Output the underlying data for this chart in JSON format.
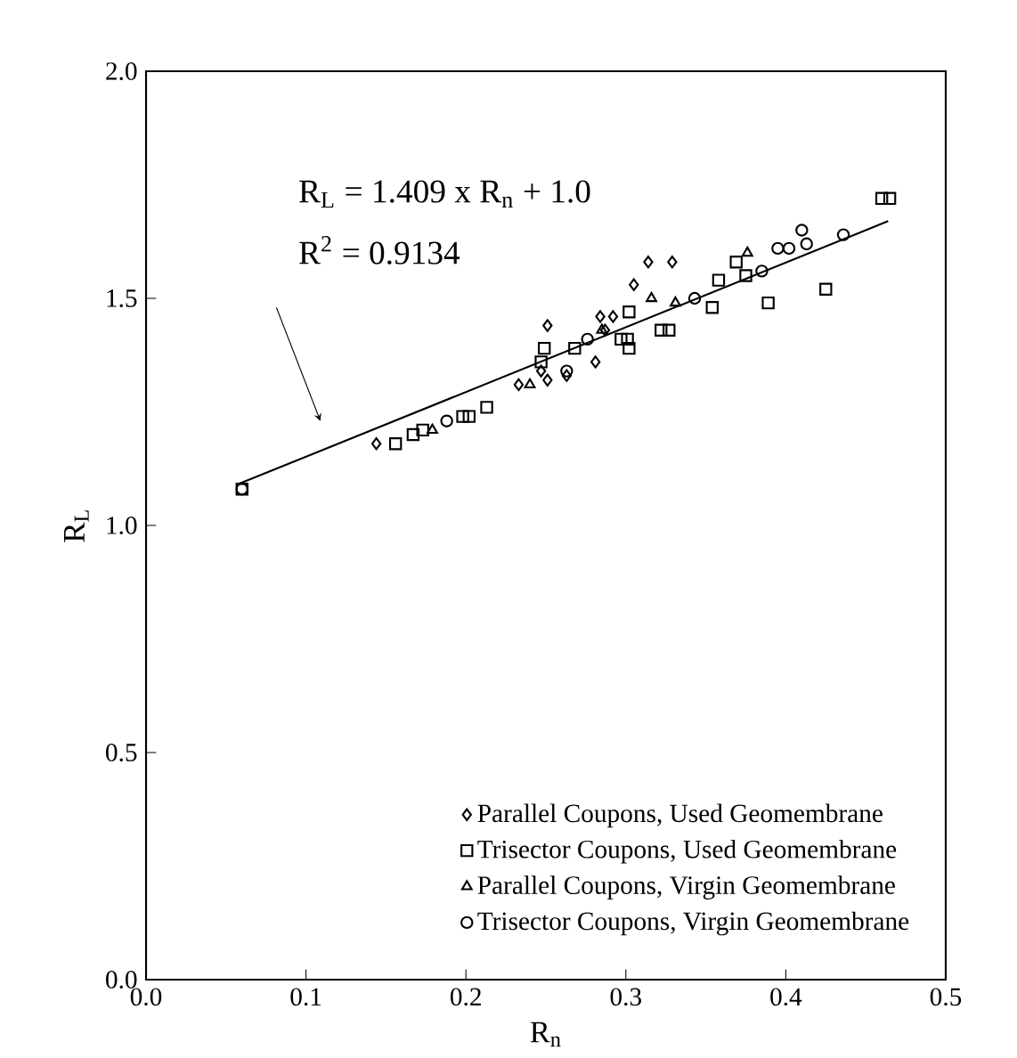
{
  "chart_data": {
    "type": "scatter",
    "xlabel": "R$_{n}$",
    "ylabel": "R$_{L}$",
    "xlim": [
      0,
      0.5
    ],
    "ylim": [
      0,
      2
    ],
    "xticks": [
      {
        "value": 0,
        "label": "0.0"
      },
      {
        "value": 0.1,
        "label": "0.1"
      },
      {
        "value": 0.2,
        "label": "0.2"
      },
      {
        "value": 0.3,
        "label": "0.3"
      },
      {
        "value": 0.4,
        "label": "0.4"
      },
      {
        "value": 0.5,
        "label": "0.5"
      }
    ],
    "yticks": [
      {
        "value": 0,
        "label": "0.0"
      },
      {
        "value": 0.5,
        "label": "0.5"
      },
      {
        "value": 1,
        "label": "1.0"
      },
      {
        "value": 1.5,
        "label": "1.5"
      },
      {
        "value": 2,
        "label": "2.0"
      }
    ],
    "grid": false,
    "legend": "bottom right",
    "annotations": [
      "R$_{L}$ = 1.409 x R$_{n}$ + 1.0",
      "R$^{2}$ = 0.9134"
    ],
    "series": [
      {
        "name": "Parallel Coupons, Used Geomembrane",
        "color": "#000000",
        "marker": "diamond",
        "x": [
          0.144,
          0.314,
          0.329,
          0.305,
          0.251,
          0.284,
          0.292,
          0.281,
          0.251,
          0.233,
          0.263,
          0.247,
          0.287
        ],
        "values": [
          1.18,
          1.58,
          1.58,
          1.53,
          1.44,
          1.46,
          1.46,
          1.36,
          1.32,
          1.31,
          1.33,
          1.34,
          1.43
        ]
      },
      {
        "name": "Trisector Coupons, Used Geomembrane",
        "color": "#000000",
        "marker": "square",
        "x": [
          0.06,
          0.156,
          0.167,
          0.173,
          0.198,
          0.202,
          0.213,
          0.249,
          0.247,
          0.268,
          0.302,
          0.301,
          0.302,
          0.297,
          0.322,
          0.327,
          0.358,
          0.354,
          0.369,
          0.375,
          0.389,
          0.425,
          0.46,
          0.465
        ],
        "values": [
          1.08,
          1.18,
          1.2,
          1.21,
          1.24,
          1.24,
          1.26,
          1.39,
          1.36,
          1.39,
          1.47,
          1.41,
          1.39,
          1.41,
          1.43,
          1.43,
          1.54,
          1.48,
          1.58,
          1.55,
          1.49,
          1.52,
          1.72,
          1.72
        ]
      },
      {
        "name": "Parallel Coupons, Virgin Geomembrane",
        "color": "#000000",
        "marker": "triangle",
        "x": [
          0.179,
          0.24,
          0.316,
          0.331,
          0.376,
          0.285
        ],
        "values": [
          1.21,
          1.31,
          1.5,
          1.49,
          1.6,
          1.43
        ]
      },
      {
        "name": "Trisector Coupons, Virgin Geomembrane",
        "color": "#000000",
        "marker": "circle",
        "x": [
          0.06,
          0.188,
          0.343,
          0.385,
          0.395,
          0.402,
          0.41,
          0.413,
          0.436,
          0.276,
          0.263
        ],
        "values": [
          1.08,
          1.23,
          1.5,
          1.56,
          1.61,
          1.61,
          1.65,
          1.62,
          1.64,
          1.41,
          1.34
        ]
      },
      {
        "type": "line",
        "color": "#000000",
        "marker": "none",
        "x": [
          0.057,
          0.464
        ],
        "values": [
          1.09,
          1.67
        ]
      }
    ]
  }
}
